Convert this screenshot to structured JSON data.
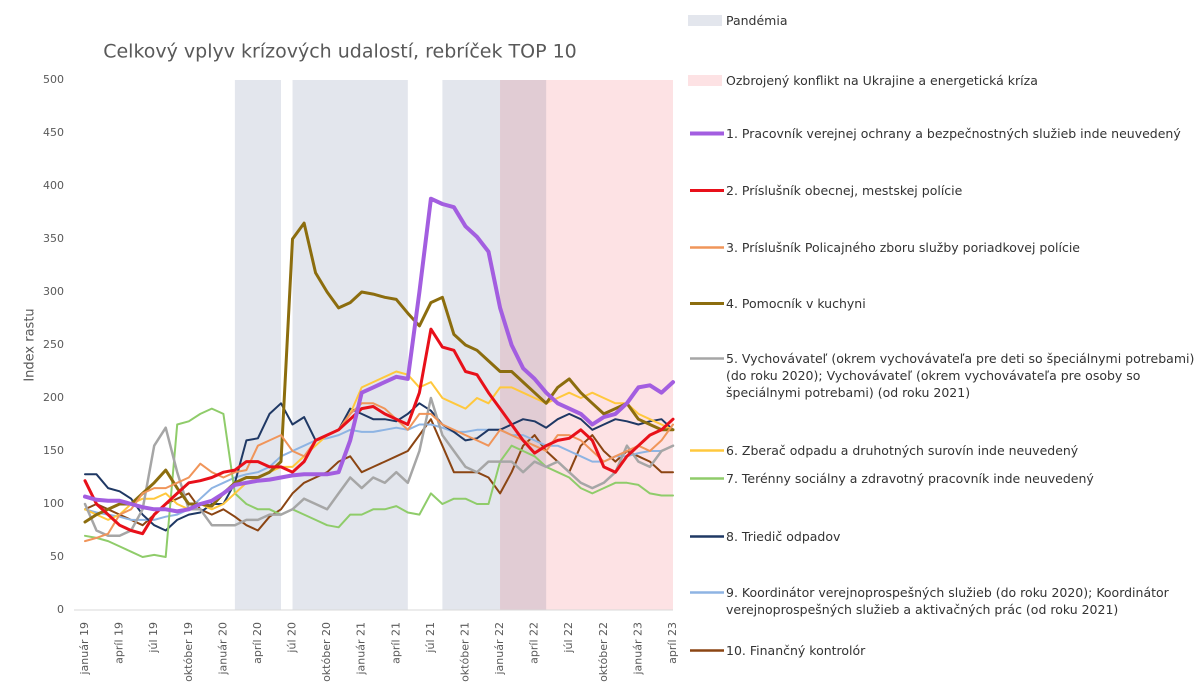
{
  "chart_data": {
    "type": "line",
    "title": "Celkový vplyv krízových udalostí, rebríček TOP 10",
    "y_label": "Index rastu",
    "categories": [
      "január 19",
      null,
      null,
      "apríl 19",
      null,
      null,
      "júl 19",
      null,
      null,
      "október 19",
      null,
      null,
      "január 20",
      null,
      null,
      "apríl 20",
      null,
      null,
      "júl 20",
      null,
      null,
      "október 20",
      null,
      null,
      "január 21",
      null,
      null,
      "apríl 21",
      null,
      null,
      "júl 21",
      null,
      null,
      "október 21",
      null,
      null,
      "január 22",
      null,
      null,
      "apríl 22",
      null,
      null,
      "júl 22",
      null,
      null,
      "október 22",
      null,
      null,
      "január 23",
      null,
      null,
      "apríl 23"
    ],
    "ylim": [
      0,
      500
    ],
    "yticks": [
      0,
      50,
      100,
      150,
      200,
      250,
      300,
      350,
      400,
      450,
      500
    ],
    "grid": false,
    "bands": [
      {
        "name": "Pandémia",
        "color": "#e3e6ed",
        "ranges": [
          [
            13,
            17
          ],
          [
            18,
            28
          ],
          [
            31,
            40
          ]
        ]
      },
      {
        "name": "Ozbrojený konflikt na Ukrajine a energetická kríza",
        "color": "#fde2e4",
        "ranges": [
          [
            36,
            51
          ]
        ]
      }
    ],
    "series": [
      {
        "name": "1. Pracovník verejnej ochrany a bezpečnostných služieb inde neuvedený",
        "color": "#a35ee0",
        "width": 4,
        "values": [
          107,
          104,
          103,
          103,
          100,
          97,
          95,
          95,
          93,
          95,
          100,
          103,
          110,
          118,
          120,
          122,
          123,
          125,
          127,
          128,
          128,
          128,
          130,
          160,
          205,
          210,
          215,
          220,
          218,
          300,
          388,
          383,
          380,
          362,
          352,
          338,
          285,
          250,
          228,
          218,
          205,
          195,
          190,
          185,
          175,
          182,
          185,
          195,
          210,
          212,
          205,
          215
        ]
      },
      {
        "name": "2. Príslušník obecnej, mestskej polície",
        "color": "#e8101a",
        "width": 3,
        "values": [
          122,
          100,
          90,
          80,
          75,
          72,
          90,
          100,
          110,
          120,
          122,
          125,
          130,
          132,
          140,
          140,
          135,
          135,
          130,
          140,
          160,
          165,
          170,
          180,
          190,
          192,
          185,
          180,
          175,
          205,
          265,
          248,
          245,
          225,
          222,
          205,
          190,
          175,
          160,
          148,
          155,
          160,
          162,
          170,
          160,
          135,
          130,
          145,
          155,
          165,
          170,
          180
        ]
      },
      {
        "name": "3. Príslušník Policajného zboru služby poriadkovej polície",
        "color": "#f0955a",
        "width": 2,
        "values": [
          65,
          68,
          72,
          90,
          95,
          110,
          115,
          115,
          120,
          125,
          138,
          130,
          125,
          130,
          132,
          155,
          160,
          165,
          150,
          145,
          160,
          165,
          170,
          185,
          195,
          195,
          190,
          180,
          170,
          185,
          185,
          175,
          170,
          165,
          160,
          155,
          170,
          165,
          160,
          155,
          150,
          165,
          165,
          160,
          150,
          140,
          145,
          150,
          155,
          150,
          160,
          175
        ]
      },
      {
        "name": "4. Pomocník v kuchyni",
        "color": "#8c6d0e",
        "width": 3,
        "values": [
          83,
          90,
          95,
          100,
          100,
          110,
          120,
          132,
          115,
          100,
          100,
          98,
          110,
          120,
          125,
          125,
          130,
          140,
          350,
          365,
          318,
          300,
          285,
          290,
          300,
          298,
          295,
          293,
          280,
          268,
          290,
          295,
          260,
          250,
          245,
          235,
          225,
          225,
          215,
          205,
          195,
          210,
          218,
          205,
          195,
          185,
          190,
          195,
          180,
          175,
          170,
          170
        ]
      },
      {
        "name": "5. Vychovávateľ (okrem vychovávateľa pre deti so špeciálnymi potrebami) (do roku 2020); Vychovávateľ (okrem vychovávateľa pre osoby so špeciálnymi potrebami) (od roku 2021)",
        "color": "#a6a6a6",
        "width": 2.5,
        "values": [
          100,
          75,
          70,
          70,
          75,
          95,
          155,
          172,
          130,
          95,
          95,
          80,
          80,
          80,
          85,
          85,
          90,
          90,
          95,
          105,
          100,
          95,
          110,
          125,
          115,
          125,
          120,
          130,
          120,
          150,
          200,
          165,
          150,
          135,
          130,
          140,
          140,
          140,
          130,
          140,
          135,
          140,
          130,
          120,
          115,
          120,
          130,
          155,
          140,
          135,
          150,
          155
        ]
      },
      {
        "name": "6. Zberač odpadu a druhotných surovín inde neuvedený",
        "color": "#ffc83d",
        "width": 2,
        "values": [
          95,
          90,
          85,
          90,
          100,
          105,
          105,
          110,
          100,
          95,
          100,
          95,
          100,
          110,
          120,
          125,
          130,
          135,
          135,
          145,
          155,
          165,
          170,
          185,
          210,
          215,
          220,
          225,
          222,
          210,
          215,
          200,
          195,
          190,
          200,
          195,
          210,
          210,
          205,
          200,
          195,
          200,
          205,
          200,
          205,
          200,
          195,
          195,
          185,
          180,
          175,
          170
        ]
      },
      {
        "name": "7. Terénny sociálny a zdravotný pracovník inde neuvedený",
        "color": "#8fcc6a",
        "width": 2,
        "values": [
          70,
          68,
          65,
          60,
          55,
          50,
          52,
          50,
          175,
          178,
          185,
          190,
          185,
          110,
          100,
          95,
          95,
          90,
          95,
          90,
          85,
          80,
          78,
          90,
          90,
          95,
          95,
          98,
          92,
          90,
          110,
          100,
          105,
          105,
          100,
          100,
          140,
          155,
          150,
          145,
          135,
          130,
          125,
          115,
          110,
          115,
          120,
          120,
          118,
          110,
          108,
          108
        ]
      },
      {
        "name": "8. Triedič odpadov",
        "color": "#1f3864",
        "width": 2,
        "values": [
          128,
          128,
          115,
          112,
          105,
          90,
          80,
          75,
          85,
          90,
          92,
          100,
          100,
          120,
          160,
          162,
          185,
          195,
          175,
          182,
          160,
          165,
          170,
          190,
          185,
          180,
          180,
          178,
          185,
          195,
          188,
          175,
          168,
          160,
          162,
          170,
          170,
          175,
          180,
          178,
          172,
          180,
          185,
          180,
          170,
          175,
          180,
          178,
          175,
          178,
          180,
          170
        ]
      },
      {
        "name": "9. Koordinátor verejnoprospešných služieb (do roku 2020); Koordinátor verejnoprospešných služieb a aktivačných prác (od roku 2021)",
        "color": "#8eb4e3",
        "width": 2,
        "values": [
          95,
          92,
          90,
          88,
          85,
          85,
          85,
          88,
          90,
          95,
          105,
          115,
          120,
          125,
          128,
          130,
          135,
          145,
          150,
          155,
          160,
          162,
          165,
          170,
          168,
          168,
          170,
          172,
          170,
          175,
          175,
          172,
          168,
          168,
          170,
          170,
          170,
          165,
          165,
          160,
          155,
          155,
          150,
          145,
          140,
          140,
          145,
          145,
          148,
          150,
          150,
          155
        ]
      },
      {
        "name": "10. Finančný kontrolór",
        "color": "#8b4513",
        "width": 2,
        "values": [
          95,
          100,
          95,
          90,
          85,
          80,
          90,
          100,
          105,
          110,
          95,
          90,
          95,
          88,
          80,
          75,
          88,
          95,
          110,
          120,
          125,
          130,
          140,
          145,
          130,
          135,
          140,
          145,
          150,
          165,
          180,
          155,
          130,
          130,
          130,
          125,
          110,
          130,
          155,
          165,
          150,
          140,
          130,
          155,
          165,
          150,
          140,
          150,
          145,
          140,
          130,
          130
        ]
      }
    ]
  }
}
